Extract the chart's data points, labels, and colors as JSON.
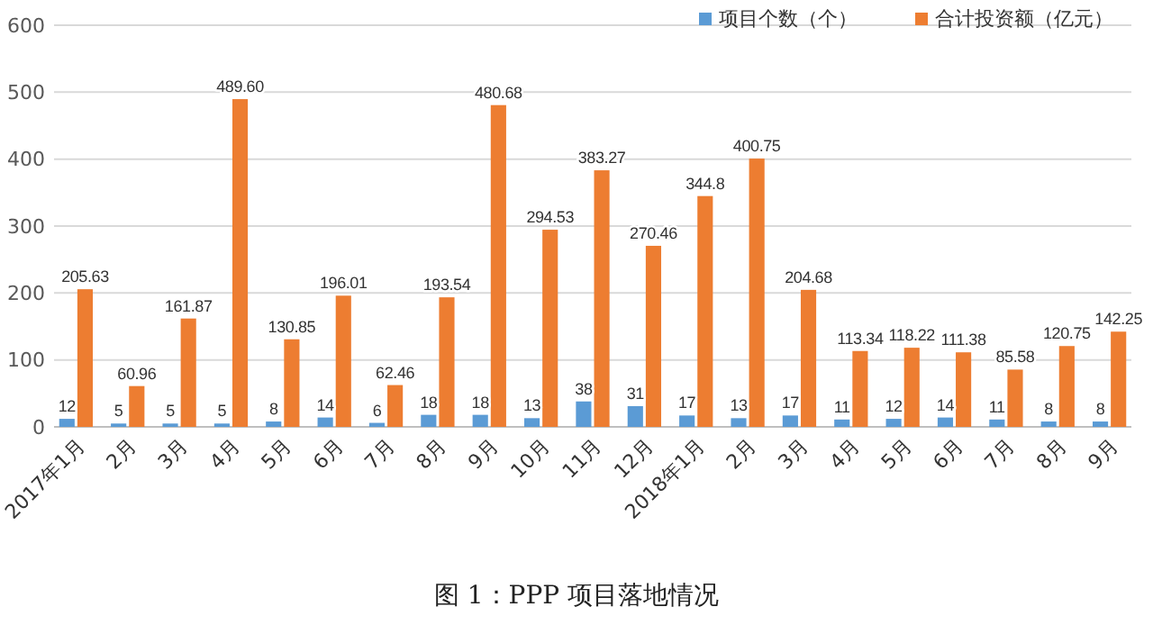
{
  "chart_data": {
    "type": "bar",
    "title": "图 1：PPP 项目落地情况",
    "categories": [
      "2017年1月",
      "2月",
      "3月",
      "4月",
      "5月",
      "6月",
      "7月",
      "8月",
      "9月",
      "10月",
      "11月",
      "12月",
      "2018年1月",
      "2月",
      "3月",
      "4月",
      "5月",
      "6月",
      "7月",
      "8月",
      "9月"
    ],
    "series": [
      {
        "name": "项目个数（个）",
        "color": "#5b9bd5",
        "values": [
          12,
          5,
          5,
          5,
          8,
          14,
          6,
          18,
          18,
          13,
          38,
          31,
          17,
          13,
          17,
          11,
          12,
          14,
          11,
          8,
          8
        ],
        "value_labels": [
          "12",
          "5",
          "5",
          "5",
          "8",
          "14",
          "6",
          "18",
          "18",
          "13",
          "38",
          "31",
          "17",
          "13",
          "17",
          "11",
          "12",
          "14",
          "11",
          "8",
          "8"
        ]
      },
      {
        "name": "合计投资额（亿元）",
        "color": "#ed7d31",
        "values": [
          205.63,
          60.96,
          161.87,
          489.6,
          130.85,
          196.01,
          62.46,
          193.54,
          480.68,
          294.53,
          383.27,
          270.46,
          344.8,
          400.75,
          204.68,
          113.34,
          118.22,
          111.38,
          85.58,
          120.75,
          142.25
        ],
        "value_labels": [
          "205.63",
          "60.96",
          "161.87",
          "489.60",
          "130.85",
          "196.01",
          "62.46",
          "193.54",
          "480.68",
          "294.53",
          "383.27",
          "270.46",
          "344.8",
          "400.75",
          "204.68",
          "113.34",
          "118.22",
          "111.38",
          "85.58",
          "120.75",
          "142.25"
        ]
      }
    ],
    "ylim": [
      0,
      600
    ],
    "yticks": [
      0,
      100,
      200,
      300,
      400,
      500,
      600
    ],
    "grid": "y",
    "legend": "top right"
  }
}
